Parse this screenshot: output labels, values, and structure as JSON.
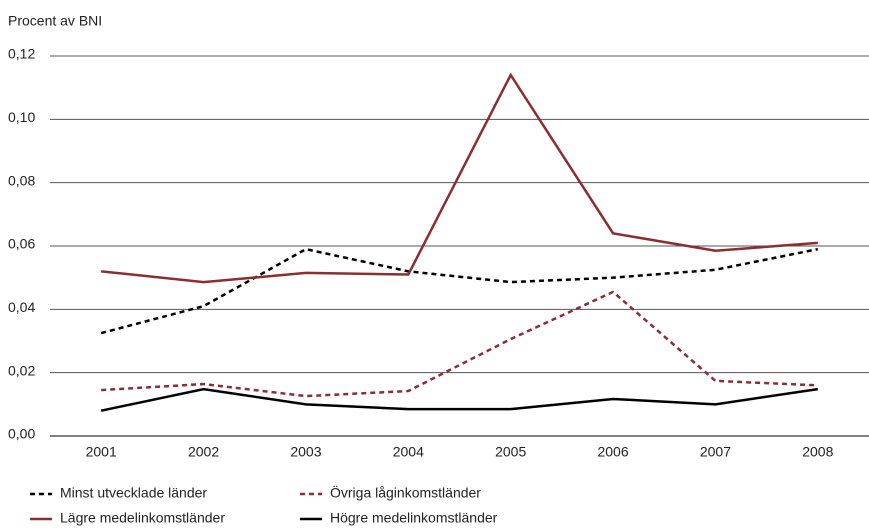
{
  "chart_data": {
    "type": "line",
    "ylabel": "Procent av BNI",
    "categories": [
      "2001",
      "2002",
      "2003",
      "2004",
      "2005",
      "2006",
      "2007",
      "2008"
    ],
    "series": [
      {
        "name": "Minst utvecklade länder",
        "color": "#000000",
        "dashed": true,
        "values": [
          0.0325,
          0.041,
          0.059,
          0.052,
          0.0486,
          0.05,
          0.0525,
          0.059
        ]
      },
      {
        "name": "Övriga låginkomstländer",
        "color": "#8b2e32",
        "dashed": true,
        "values": [
          0.0145,
          0.0164,
          0.0126,
          0.0142,
          0.0306,
          0.0455,
          0.0174,
          0.016
        ]
      },
      {
        "name": "Lägre medelinkomstländer",
        "color": "#8b2e32",
        "dashed": false,
        "values": [
          0.052,
          0.0486,
          0.0515,
          0.051,
          0.114,
          0.064,
          0.0585,
          0.061
        ]
      },
      {
        "name": "Högre medelinkomstländer",
        "color": "#000000",
        "dashed": false,
        "values": [
          0.008,
          0.0148,
          0.01,
          0.0085,
          0.0085,
          0.0117,
          0.01,
          0.0148
        ]
      }
    ],
    "ylim": [
      0,
      0.12
    ],
    "yticks": [
      {
        "value": 0,
        "label": "0,00"
      },
      {
        "value": 0.02,
        "label": "0,02"
      },
      {
        "value": 0.04,
        "label": "0,04"
      },
      {
        "value": 0.06,
        "label": "0,06"
      },
      {
        "value": 0.08,
        "label": "0,08"
      },
      {
        "value": 0.1,
        "label": "0,10"
      },
      {
        "value": 0.12,
        "label": "0,12"
      }
    ],
    "grid": true
  }
}
